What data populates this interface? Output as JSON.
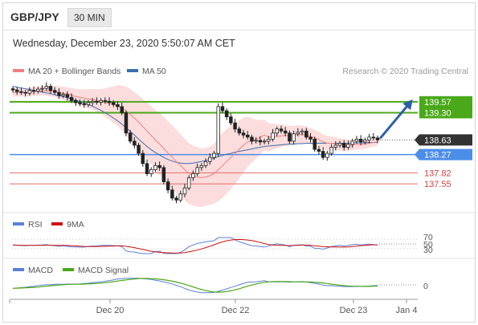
{
  "header": {
    "pair": "GBP/JPY",
    "timeframe": "30 MIN",
    "datetime": "Wednesday, December 23, 2020 5:50:07 AM CET"
  },
  "legend": {
    "ma20_bb": "MA 20 + Bollinger Bands",
    "ma50": "MA 50",
    "credit": "Research © 2020 Trading Central"
  },
  "colors": {
    "ma20": "#f08080",
    "ma50": "#3a6fb0",
    "band": "#fbd2d2",
    "resistance": "#4aa81a",
    "support": "#4a8ee8",
    "level": "#e36a6a",
    "price_badge": "#333333",
    "arrow": "#2c5fa8"
  },
  "chart_data": [
    {
      "type": "candlestick",
      "y_range": [
        136.9,
        140.1
      ],
      "price_levels": [
        {
          "label": "139.57",
          "value": 139.57,
          "kind": "resistance"
        },
        {
          "label": "139.30",
          "value": 139.3,
          "kind": "resistance"
        },
        {
          "label": "138.63",
          "value": 138.63,
          "kind": "last"
        },
        {
          "label": "138.27",
          "value": 138.27,
          "kind": "support"
        },
        {
          "label": "137.82",
          "value": 137.82,
          "kind": "minor"
        },
        {
          "label": "137.55",
          "value": 137.55,
          "kind": "minor"
        }
      ],
      "close": [
        139.86,
        139.82,
        139.8,
        139.78,
        139.85,
        139.83,
        139.88,
        139.9,
        139.95,
        139.85,
        139.8,
        139.72,
        139.75,
        139.68,
        139.6,
        139.55,
        139.52,
        139.5,
        139.55,
        139.58,
        139.56,
        139.6,
        139.58,
        139.55,
        139.5,
        139.45,
        139.3,
        138.8,
        138.6,
        138.5,
        138.3,
        138.05,
        137.8,
        137.9,
        138.0,
        137.95,
        137.6,
        137.4,
        137.2,
        137.15,
        137.3,
        137.45,
        137.7,
        137.8,
        137.95,
        138.0,
        138.1,
        138.2,
        138.3,
        139.45,
        139.35,
        139.2,
        139.05,
        138.9,
        138.8,
        138.75,
        138.7,
        138.6,
        138.62,
        138.58,
        138.6,
        138.65,
        138.8,
        138.9,
        138.85,
        138.8,
        138.6,
        138.78,
        138.82,
        138.85,
        138.7,
        138.65,
        138.4,
        138.35,
        138.2,
        138.3,
        138.45,
        138.5,
        138.55,
        138.45,
        138.52,
        138.6,
        138.65,
        138.58,
        138.63,
        138.7,
        138.68,
        138.63
      ],
      "ma20": [
        139.8,
        139.8,
        139.8,
        139.8,
        139.81,
        139.82,
        139.83,
        139.84,
        139.84,
        139.83,
        139.82,
        139.8,
        139.78,
        139.76,
        139.73,
        139.7,
        139.68,
        139.66,
        139.64,
        139.63,
        139.6,
        139.58,
        139.55,
        139.53,
        139.5,
        139.48,
        139.42,
        139.35,
        139.26,
        139.17,
        139.07,
        138.96,
        138.85,
        138.74,
        138.63,
        138.53,
        138.42,
        138.31,
        138.21,
        138.1,
        138.0,
        137.9,
        137.8,
        137.75,
        137.72,
        137.7,
        137.72,
        137.75,
        137.8,
        137.9,
        138.0,
        138.1,
        138.2,
        138.3,
        138.4,
        138.5,
        138.58,
        138.62,
        138.65,
        138.7,
        138.75,
        138.7,
        138.71,
        138.72,
        138.73,
        138.74,
        138.73,
        138.74,
        138.76,
        138.77,
        138.75,
        138.72,
        138.68,
        138.64,
        138.58,
        138.55,
        138.55,
        138.54,
        138.52,
        138.5,
        138.5,
        138.51,
        138.52,
        138.52,
        138.53,
        138.55,
        138.57,
        138.58
      ],
      "ma50": [
        139.95,
        139.93,
        139.91,
        139.89,
        139.87,
        139.85,
        139.83,
        139.81,
        139.79,
        139.77,
        139.74,
        139.72,
        139.7,
        139.67,
        139.64,
        139.61,
        139.58,
        139.54,
        139.5,
        139.46,
        139.41,
        139.36,
        139.3,
        139.24,
        139.17,
        139.1,
        139.02,
        138.93,
        138.84,
        138.75,
        138.65,
        138.56,
        138.47,
        138.39,
        138.32,
        138.26,
        138.2,
        138.15,
        138.11,
        138.08,
        138.06,
        138.05,
        138.05,
        138.06,
        138.08,
        138.1,
        138.12,
        138.15,
        138.18,
        138.22,
        138.25,
        138.28,
        138.3,
        138.33,
        138.35,
        138.37,
        138.39,
        138.41,
        138.43,
        138.45,
        138.47,
        138.48,
        138.49,
        138.5,
        138.51,
        138.52,
        138.53,
        138.53,
        138.54,
        138.54,
        138.55,
        138.55,
        138.55,
        138.55,
        138.55,
        138.55,
        138.55,
        138.55,
        138.55,
        138.55,
        138.55,
        138.56,
        138.56,
        138.56,
        138.56,
        138.57,
        138.57,
        138.57
      ],
      "band_width": [
        0.1,
        0.1,
        0.1,
        0.1,
        0.1,
        0.11,
        0.11,
        0.12,
        0.12,
        0.13,
        0.14,
        0.15,
        0.16,
        0.17,
        0.18,
        0.19,
        0.2,
        0.22,
        0.24,
        0.26,
        0.28,
        0.3,
        0.35,
        0.4,
        0.45,
        0.5,
        0.55,
        0.6,
        0.62,
        0.64,
        0.66,
        0.68,
        0.7,
        0.72,
        0.74,
        0.76,
        0.78,
        0.78,
        0.78,
        0.78,
        0.77,
        0.76,
        0.75,
        0.74,
        0.73,
        0.72,
        0.71,
        0.72,
        0.74,
        0.78,
        0.8,
        0.8,
        0.78,
        0.75,
        0.72,
        0.68,
        0.62,
        0.55,
        0.48,
        0.42,
        0.38,
        0.35,
        0.32,
        0.3,
        0.28,
        0.26,
        0.25,
        0.24,
        0.23,
        0.22,
        0.21,
        0.2,
        0.2,
        0.19,
        0.18,
        0.18,
        0.17,
        0.16,
        0.15,
        0.15,
        0.14,
        0.13,
        0.12,
        0.12,
        0.11,
        0.11,
        0.1,
        0.1
      ],
      "forecast_arrow": {
        "from": 138.63,
        "to": 139.57
      }
    },
    {
      "type": "line",
      "legend": [
        "RSI",
        "9MA"
      ],
      "levels": [
        {
          "label": "70",
          "value": 70
        },
        {
          "label": "50",
          "value": 50
        },
        {
          "label": "30",
          "value": 30
        }
      ]
    },
    {
      "type": "line",
      "legend": [
        "MACD",
        "MACD Signal"
      ],
      "levels": [
        {
          "label": "0",
          "value": 0
        }
      ],
      "x_ticks": [
        "Dec 20",
        "Dec 22",
        "Dec 23",
        "Jan 4"
      ]
    }
  ]
}
